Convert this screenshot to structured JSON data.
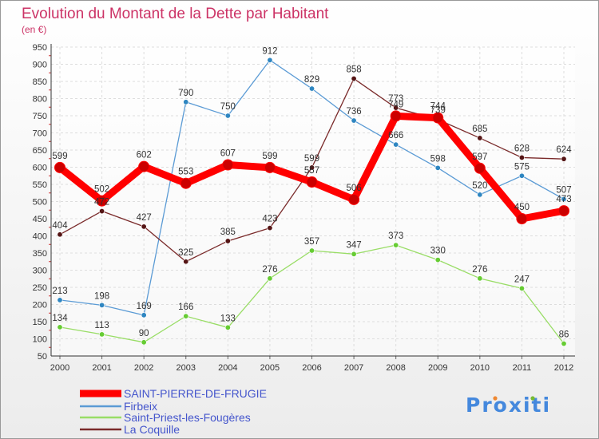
{
  "chart_data": {
    "type": "line",
    "title": "Evolution du Montant de la Dette par Habitant",
    "subtitle": "(en €)",
    "x": [
      "2000",
      "2001",
      "2002",
      "2003",
      "2004",
      "2005",
      "2006",
      "2007",
      "2008",
      "2009",
      "2010",
      "2011",
      "2012"
    ],
    "ylim": [
      50,
      950
    ],
    "yticks": [
      50,
      100,
      150,
      200,
      250,
      300,
      350,
      400,
      450,
      500,
      550,
      600,
      650,
      700,
      750,
      800,
      850,
      900,
      950
    ],
    "grid": true,
    "legend_position": "bottom-left",
    "series": [
      {
        "name": "SAINT-PIERRE-DE-FRUGIE",
        "color": "#ff0000",
        "point_color": "#cc0000",
        "values": [
          599,
          502,
          602,
          553,
          607,
          599,
          557,
          506,
          749,
          744,
          597,
          450,
          473
        ]
      },
      {
        "name": "Firbeix",
        "color": "#5b9bd5",
        "point_color": "#2e86c1",
        "values": [
          213,
          198,
          169,
          790,
          750,
          912,
          829,
          736,
          666,
          598,
          520,
          575,
          507
        ]
      },
      {
        "name": "Saint-Priest-les-Fougères",
        "color": "#99dd66",
        "point_color": "#66cc33",
        "values": [
          134,
          113,
          90,
          166,
          133,
          276,
          357,
          347,
          373,
          330,
          276,
          247,
          86
        ]
      },
      {
        "name": "La Coquille",
        "color": "#7a2a2a",
        "point_color": "#551515",
        "values": [
          404,
          472,
          427,
          325,
          385,
          423,
          599,
          858,
          773,
          739,
          685,
          628,
          624
        ]
      }
    ],
    "colors": {
      "title": "#cc3366",
      "legend_text": "#4455cc",
      "brand_blue": "#4488dd",
      "brand_orange": "#ee8833",
      "brand_green": "#77bb33"
    }
  },
  "brand": {
    "logo_text": "Proxiti"
  }
}
